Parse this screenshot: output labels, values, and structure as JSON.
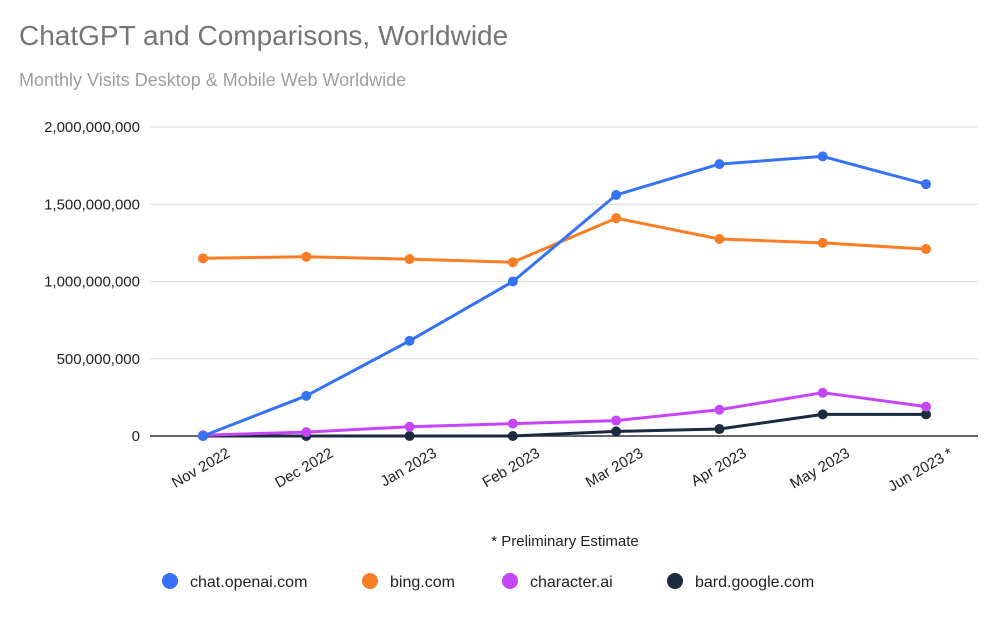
{
  "chart_data": {
    "type": "line",
    "title": "ChatGPT and Comparisons, Worldwide",
    "subtitle": "Monthly Visits Desktop & Mobile Web Worldwide",
    "xlabel": "",
    "ylabel": "",
    "categories": [
      "Nov 2022",
      "Dec 2022",
      "Jan 2023",
      "Feb 2023",
      "Mar 2023",
      "Apr 2023",
      "May 2023",
      "Jun 2023 *"
    ],
    "ylim": [
      0,
      2000000000
    ],
    "yticks": [
      0,
      500000000,
      1000000000,
      1500000000,
      2000000000
    ],
    "ytick_labels": [
      "0",
      "500,000,000",
      "1,000,000,000",
      "1,500,000,000",
      "2,000,000,000"
    ],
    "grid": true,
    "legend_position": "bottom",
    "annotation": "* Preliminary Estimate",
    "series": [
      {
        "name": "chat.openai.com",
        "color": "#3672f5",
        "values": [
          0,
          260000000,
          616000000,
          1000000000,
          1560000000,
          1760000000,
          1810000000,
          1630000000
        ]
      },
      {
        "name": "bing.com",
        "color": "#f97d24",
        "values": [
          1150000000,
          1160000000,
          1145000000,
          1125000000,
          1410000000,
          1275000000,
          1250000000,
          1210000000
        ]
      },
      {
        "name": "character.ai",
        "color": "#c545f8",
        "values": [
          5000000,
          25000000,
          60000000,
          80000000,
          100000000,
          170000000,
          280000000,
          190000000
        ]
      },
      {
        "name": "bard.google.com",
        "color": "#1b2a3e",
        "values": [
          0,
          0,
          0,
          0,
          30000000,
          45000000,
          140000000,
          140000000
        ]
      }
    ]
  }
}
